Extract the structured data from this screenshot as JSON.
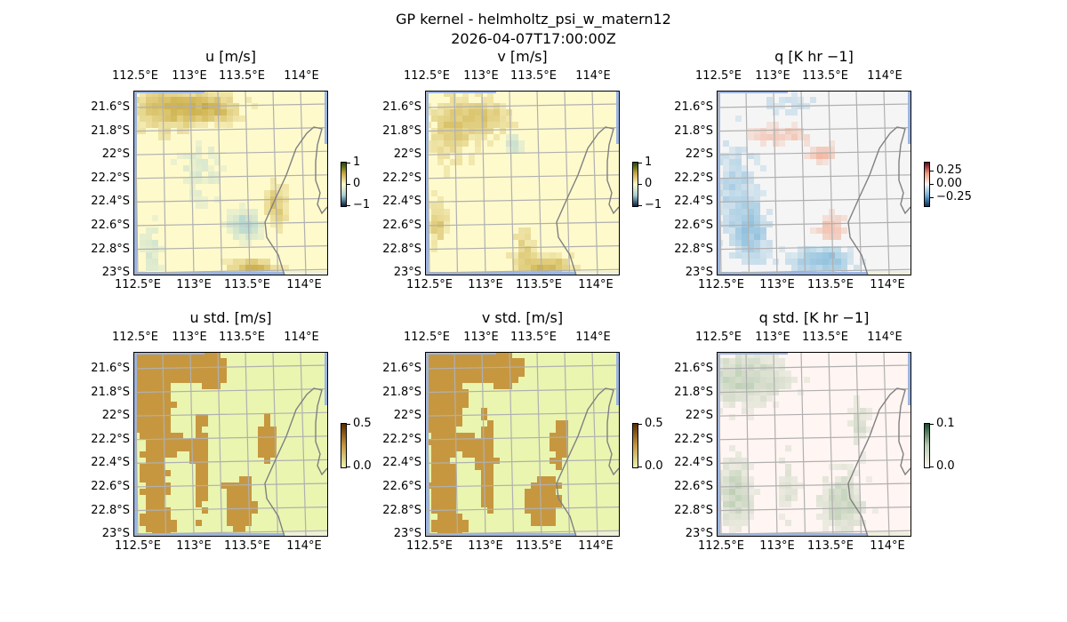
{
  "figure": {
    "title": "GP kernel - helmholtz_psi_w_matern12",
    "subtitle": "2026-04-07T17:00:00Z"
  },
  "chart_data": [
    {
      "type": "heatmap",
      "title": "u [m/s]",
      "lon_ticks": [
        "112.5°E",
        "113°E",
        "113.5°E",
        "114°E"
      ],
      "lat_ticks": [
        "21.6°S",
        "21.8°S",
        "22°S",
        "22.2°S",
        "22.4°S",
        "22.6°S",
        "22.8°S",
        "23°S"
      ],
      "colorbar": {
        "ticks": [
          "1",
          "0",
          "−1"
        ],
        "range": [
          -1,
          1
        ],
        "colors": [
          "#00204c",
          "#a8d0d0",
          "#fefacc",
          "#c9aa40",
          "#1a4a00"
        ]
      },
      "base_color": "#fefacc"
    },
    {
      "type": "heatmap",
      "title": "v [m/s]",
      "lon_ticks": [
        "112.5°E",
        "113°E",
        "113.5°E",
        "114°E"
      ],
      "lat_ticks": [
        "21.6°S",
        "21.8°S",
        "22°S",
        "22.2°S",
        "22.4°S",
        "22.6°S",
        "22.8°S",
        "23°S"
      ],
      "colorbar": {
        "ticks": [
          "1",
          "0",
          "−1"
        ],
        "range": [
          -1,
          1
        ],
        "colors": [
          "#00204c",
          "#a8d0d0",
          "#fefacc",
          "#c9aa40",
          "#1a4a00"
        ]
      },
      "base_color": "#fefacc"
    },
    {
      "type": "heatmap",
      "title": "q [K hr −1]",
      "lon_ticks": [
        "112.5°E",
        "113°E",
        "113.5°E",
        "114°E"
      ],
      "lat_ticks": [
        "21.6°S",
        "21.8°S",
        "22°S",
        "22.2°S",
        "22.4°S",
        "22.6°S",
        "22.8°S",
        "23°S"
      ],
      "colorbar": {
        "ticks": [
          "0.25",
          "0.00",
          "−0.25"
        ],
        "range": [
          -0.4,
          0.4
        ],
        "colors": [
          "#053061",
          "#6fb0d6",
          "#f5f5f5",
          "#f09a7a",
          "#67001f"
        ]
      },
      "base_color": "#f5f5f5"
    },
    {
      "type": "heatmap",
      "title": "u std. [m/s]",
      "lon_ticks": [
        "112.5°E",
        "113°E",
        "113.5°E",
        "114°E"
      ],
      "lat_ticks": [
        "21.6°S",
        "21.8°S",
        "22°S",
        "22.2°S",
        "22.4°S",
        "22.6°S",
        "22.8°S",
        "23°S"
      ],
      "colorbar": {
        "ticks": [
          "0.5",
          "0.0"
        ],
        "range": [
          0,
          0.5
        ],
        "colors": [
          "#eaf5b0",
          "#c6973f",
          "#5a2a00"
        ]
      },
      "base_color": "#eaf5b0"
    },
    {
      "type": "heatmap",
      "title": "v std. [m/s]",
      "lon_ticks": [
        "112.5°E",
        "113°E",
        "113.5°E",
        "114°E"
      ],
      "lat_ticks": [
        "21.6°S",
        "21.8°S",
        "22°S",
        "22.2°S",
        "22.4°S",
        "22.6°S",
        "22.8°S",
        "23°S"
      ],
      "colorbar": {
        "ticks": [
          "0.5",
          "0.0"
        ],
        "range": [
          0,
          0.5
        ],
        "colors": [
          "#eaf5b0",
          "#c6973f",
          "#5a2a00"
        ]
      },
      "base_color": "#eaf5b0"
    },
    {
      "type": "heatmap",
      "title": "q std. [K hr −1]",
      "lon_ticks": [
        "112.5°E",
        "113°E",
        "113.5°E",
        "114°E"
      ],
      "lat_ticks": [
        "21.6°S",
        "21.8°S",
        "22°S",
        "22.2°S",
        "22.4°S",
        "22.6°S",
        "22.8°S",
        "23°S"
      ],
      "colorbar": {
        "ticks": [
          "0.1",
          "0.0"
        ],
        "range": [
          0,
          0.1
        ],
        "colors": [
          "#fff5f2",
          "#b8ccb0",
          "#1a4a30"
        ]
      },
      "base_color": "#fff5f2"
    }
  ]
}
